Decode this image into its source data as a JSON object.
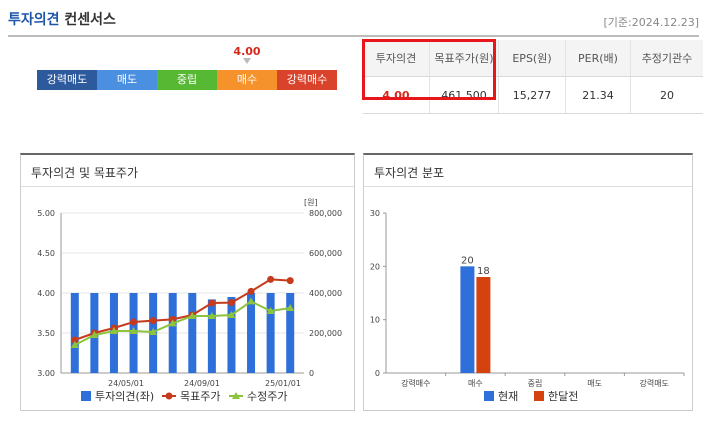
{
  "header": {
    "title_part1": "투자의견",
    "title_part2": "컨센서스",
    "date": "[기준:2024.12.23]"
  },
  "opinion_scale": {
    "current_value": "4.00",
    "segments": [
      {
        "label": "강력매도",
        "color": "#2d5a9c"
      },
      {
        "label": "매도",
        "color": "#4b8fe0"
      },
      {
        "label": "중립",
        "color": "#57b833"
      },
      {
        "label": "매수",
        "color": "#f5922b"
      },
      {
        "label": "강력매수",
        "color": "#d9432b"
      }
    ]
  },
  "consensus_table": {
    "headers": [
      "투자의견",
      "목표주가(원)",
      "EPS(원)",
      "PER(배)",
      "추정기관수"
    ],
    "values": [
      "4.00",
      "461,500",
      "15,277",
      "21.34",
      "20"
    ]
  },
  "left_panel": {
    "title": "투자의견 및 목표주가",
    "unit": "[원]",
    "x_ticks": [
      "24/05/01",
      "24/09/01",
      "25/01/01"
    ],
    "legend": {
      "opinion": "투자의견(좌)",
      "target": "목표주가",
      "adjusted": "수정주가"
    }
  },
  "right_panel": {
    "title": "투자의견 분포",
    "legend": {
      "current": "현재",
      "month_ago": "한달전"
    }
  },
  "chart_data": [
    {
      "type": "bar+line",
      "title": "투자의견 및 목표주가",
      "y_left": {
        "label": "투자의견",
        "range": [
          3.0,
          5.0
        ],
        "ticks": [
          "5.00",
          "4.50",
          "4.00",
          "3.50",
          "3.00"
        ]
      },
      "y_right": {
        "label": "[원]",
        "range": [
          0,
          800000
        ],
        "ticks": [
          "800,000",
          "600,000",
          "400,000",
          "200,000",
          "0"
        ]
      },
      "x_ticks": [
        "24/05/01",
        "24/09/01",
        "25/01/01"
      ],
      "series": [
        {
          "name": "투자의견(좌)",
          "kind": "bar",
          "axis": "left",
          "color": "#2f6fd9",
          "values": [
            4.0,
            4.0,
            4.0,
            4.0,
            4.0,
            4.0,
            4.0,
            3.92,
            3.95,
            4.0,
            4.0,
            4.0
          ]
        },
        {
          "name": "목표주가",
          "kind": "line",
          "axis": "right",
          "color": "#c63b1e",
          "values": [
            165000,
            200000,
            225000,
            255000,
            262000,
            268000,
            290000,
            350000,
            352000,
            408000,
            468000,
            462000
          ]
        },
        {
          "name": "수정주가",
          "kind": "line",
          "axis": "right",
          "color": "#8cc43c",
          "values": [
            140000,
            190000,
            210000,
            210000,
            205000,
            248000,
            285000,
            285000,
            290000,
            358000,
            310000,
            325000
          ]
        }
      ]
    },
    {
      "type": "bar",
      "title": "투자의견 분포",
      "categories": [
        "강력매수",
        "매수",
        "중립",
        "매도",
        "강력매도"
      ],
      "ylim": [
        0,
        30
      ],
      "y_ticks": [
        "30",
        "20",
        "10",
        "0"
      ],
      "series": [
        {
          "name": "현재",
          "color": "#2f6fd9",
          "values": [
            0,
            20,
            0,
            0,
            0
          ]
        },
        {
          "name": "한달전",
          "color": "#d4420f",
          "values": [
            0,
            18,
            0,
            0,
            0
          ]
        }
      ]
    }
  ]
}
